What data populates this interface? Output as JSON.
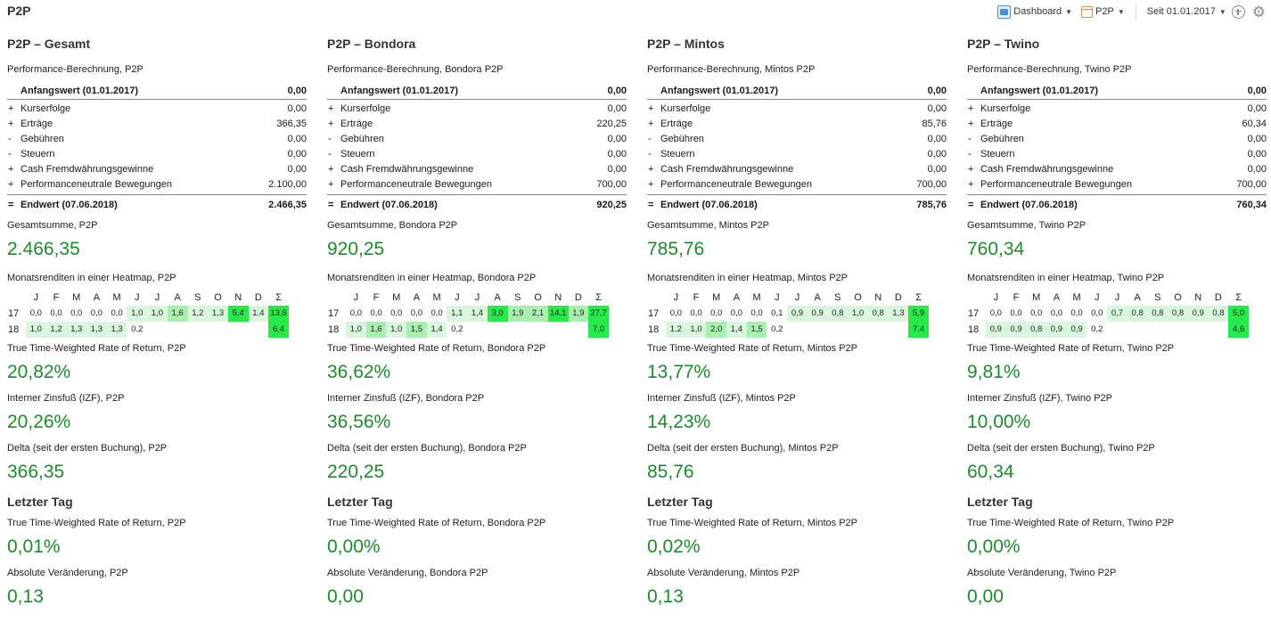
{
  "app_title": "P2P",
  "toolbar": {
    "dashboard_label": "Dashboard",
    "portfolio_label": "P2P",
    "since_label": "Seit 01.01.2017",
    "icons": [
      "dashboard-icon",
      "portfolio-icon",
      "plus-icon",
      "gear-icon"
    ]
  },
  "months": [
    "J",
    "F",
    "M",
    "A",
    "M",
    "J",
    "J",
    "A",
    "S",
    "O",
    "N",
    "D",
    "Σ"
  ],
  "columns": [
    {
      "title": "P2P – Gesamt",
      "perf_label": "Performance-Berechnung, P2P",
      "start_label": "Anfangswert (01.01.2017)",
      "start_value": "0,00",
      "items": [
        {
          "sign": "+",
          "name": "Kurserfolge",
          "value": "0,00"
        },
        {
          "sign": "+",
          "name": "Erträge",
          "value": "366,35"
        },
        {
          "sign": "-",
          "name": "Gebühren",
          "value": "0,00"
        },
        {
          "sign": "-",
          "name": "Steuern",
          "value": "0,00"
        },
        {
          "sign": "+",
          "name": "Cash Fremdwährungsgewinne",
          "value": "0,00"
        },
        {
          "sign": "+",
          "name": "Performanceneutrale Bewegungen",
          "value": "2.100,00"
        }
      ],
      "end_sign": "=",
      "end_label": "Endwert (07.06.2018)",
      "end_value": "2.466,35",
      "total_label": "Gesamtsumme, P2P",
      "total_value": "2.466,35",
      "heat_label": "Monatsrenditen in einer Heatmap, P2P",
      "heat": [
        {
          "year": "17",
          "values": [
            "0,0",
            "0,0",
            "0,0",
            "0,0",
            "0,0",
            "1,0",
            "1,0",
            "1,6",
            "1,2",
            "1,3",
            "5,4",
            "1,4",
            "13,6"
          ]
        },
        {
          "year": "18",
          "values": [
            "1,0",
            "1,2",
            "1,3",
            "1,3",
            "1,3",
            "0,2",
            "",
            "",
            "",
            "",
            "",
            "",
            "6,4"
          ]
        }
      ],
      "ttwror_label": "True Time-Weighted Rate of Return, P2P",
      "ttwror_value": "20,82%",
      "izf_label": "Interner Zinsfuß (IZF), P2P",
      "izf_value": "20,26%",
      "delta_label": "Delta (seit der ersten Buchung), P2P",
      "delta_value": "366,35",
      "last_day_title": "Letzter Tag",
      "ld_ttwror_label": "True Time-Weighted Rate of Return, P2P",
      "ld_ttwror_value": "0,01%",
      "ld_abs_label": "Absolute Veränderung, P2P",
      "ld_abs_value": "0,13"
    },
    {
      "title": "P2P – Bondora",
      "perf_label": "Performance-Berechnung, Bondora P2P",
      "start_label": "Anfangswert (01.01.2017)",
      "start_value": "0,00",
      "items": [
        {
          "sign": "+",
          "name": "Kurserfolge",
          "value": "0,00"
        },
        {
          "sign": "+",
          "name": "Erträge",
          "value": "220,25"
        },
        {
          "sign": "-",
          "name": "Gebühren",
          "value": "0,00"
        },
        {
          "sign": "-",
          "name": "Steuern",
          "value": "0,00"
        },
        {
          "sign": "+",
          "name": "Cash Fremdwährungsgewinne",
          "value": "0,00"
        },
        {
          "sign": "+",
          "name": "Performanceneutrale Bewegungen",
          "value": "700,00"
        }
      ],
      "end_sign": "=",
      "end_label": "Endwert (07.06.2018)",
      "end_value": "920,25",
      "total_label": "Gesamtsumme, Bondora P2P",
      "total_value": "920,25",
      "heat_label": "Monatsrenditen in einer Heatmap, Bondora P2P",
      "heat": [
        {
          "year": "17",
          "values": [
            "0,0",
            "0,0",
            "0,0",
            "0,0",
            "0,0",
            "1,1",
            "1,4",
            "3,0",
            "1,9",
            "2,1",
            "14,1",
            "1,9",
            "27,7"
          ]
        },
        {
          "year": "18",
          "values": [
            "1,0",
            "1,6",
            "1,0",
            "1,5",
            "1,4",
            "0,2",
            "",
            "",
            "",
            "",
            "",
            "",
            "7,0"
          ]
        }
      ],
      "ttwror_label": "True Time-Weighted Rate of Return, Bondora P2P",
      "ttwror_value": "36,62%",
      "izf_label": "Interner Zinsfuß (IZF), Bondora P2P",
      "izf_value": "36,56%",
      "delta_label": "Delta (seit der ersten Buchung), Bondora P2P",
      "delta_value": "220,25",
      "last_day_title": "Letzter Tag",
      "ld_ttwror_label": "True Time-Weighted Rate of Return, Bondora P2P",
      "ld_ttwror_value": "0,00%",
      "ld_abs_label": "Absolute Veränderung, Bondora P2P",
      "ld_abs_value": "0,00"
    },
    {
      "title": "P2P – Mintos",
      "perf_label": "Performance-Berechnung, Mintos P2P",
      "start_label": "Anfangswert (01.01.2017)",
      "start_value": "0,00",
      "items": [
        {
          "sign": "+",
          "name": "Kurserfolge",
          "value": "0,00"
        },
        {
          "sign": "+",
          "name": "Erträge",
          "value": "85,76"
        },
        {
          "sign": "-",
          "name": "Gebühren",
          "value": "0,00"
        },
        {
          "sign": "-",
          "name": "Steuern",
          "value": "0,00"
        },
        {
          "sign": "+",
          "name": "Cash Fremdwährungsgewinne",
          "value": "0,00"
        },
        {
          "sign": "+",
          "name": "Performanceneutrale Bewegungen",
          "value": "700,00"
        }
      ],
      "end_sign": "=",
      "end_label": "Endwert (07.06.2018)",
      "end_value": "785,76",
      "total_label": "Gesamtsumme, Mintos P2P",
      "total_value": "785,76",
      "heat_label": "Monatsrenditen in einer Heatmap, Mintos P2P",
      "heat": [
        {
          "year": "17",
          "values": [
            "0,0",
            "0,0",
            "0,0",
            "0,0",
            "0,0",
            "0,1",
            "0,9",
            "0,9",
            "0,8",
            "1,0",
            "0,8",
            "1,3",
            "5,9"
          ]
        },
        {
          "year": "18",
          "values": [
            "1,2",
            "1,0",
            "2,0",
            "1,4",
            "1,5",
            "0,2",
            "",
            "",
            "",
            "",
            "",
            "",
            "7,4"
          ]
        }
      ],
      "ttwror_label": "True Time-Weighted Rate of Return, Mintos P2P",
      "ttwror_value": "13,77%",
      "izf_label": "Interner Zinsfuß (IZF), Mintos P2P",
      "izf_value": "14,23%",
      "delta_label": "Delta (seit der ersten Buchung), Mintos P2P",
      "delta_value": "85,76",
      "last_day_title": "Letzter Tag",
      "ld_ttwror_label": "True Time-Weighted Rate of Return, Mintos P2P",
      "ld_ttwror_value": "0,02%",
      "ld_abs_label": "Absolute Veränderung, Mintos P2P",
      "ld_abs_value": "0,13"
    },
    {
      "title": "P2P – Twino",
      "perf_label": "Performance-Berechnung, Twino P2P",
      "start_label": "Anfangswert (01.01.2017)",
      "start_value": "0,00",
      "items": [
        {
          "sign": "+",
          "name": "Kurserfolge",
          "value": "0,00"
        },
        {
          "sign": "+",
          "name": "Erträge",
          "value": "60,34"
        },
        {
          "sign": "-",
          "name": "Gebühren",
          "value": "0,00"
        },
        {
          "sign": "-",
          "name": "Steuern",
          "value": "0,00"
        },
        {
          "sign": "+",
          "name": "Cash Fremdwährungsgewinne",
          "value": "0,00"
        },
        {
          "sign": "+",
          "name": "Performanceneutrale Bewegungen",
          "value": "700,00"
        }
      ],
      "end_sign": "=",
      "end_label": "Endwert (07.06.2018)",
      "end_value": "760,34",
      "total_label": "Gesamtsumme, Twino P2P",
      "total_value": "760,34",
      "heat_label": "Monatsrenditen in einer Heatmap, Twino P2P",
      "heat": [
        {
          "year": "17",
          "values": [
            "0,0",
            "0,0",
            "0,0",
            "0,0",
            "0,0",
            "0,0",
            "0,7",
            "0,8",
            "0,8",
            "0,8",
            "0,9",
            "0,8",
            "5,0"
          ]
        },
        {
          "year": "18",
          "values": [
            "0,9",
            "0,9",
            "0,8",
            "0,9",
            "0,9",
            "0,2",
            "",
            "",
            "",
            "",
            "",
            "",
            "4,6"
          ]
        }
      ],
      "ttwror_label": "True Time-Weighted Rate of Return, Twino P2P",
      "ttwror_value": "9,81%",
      "izf_label": "Interner Zinsfuß (IZF), Twino P2P",
      "izf_value": "10,00%",
      "delta_label": "Delta (seit der ersten Buchung), Twino P2P",
      "delta_value": "60,34",
      "last_day_title": "Letzter Tag",
      "ld_ttwror_label": "True Time-Weighted Rate of Return, Twino P2P",
      "ld_ttwror_value": "0,00%",
      "ld_abs_label": "Absolute Veränderung, Twino P2P",
      "ld_abs_value": "0,00"
    }
  ],
  "colors": {
    "accent_green": "#1e8a2e",
    "heat_low": "#d9f7dc",
    "heat_mid": "#a8efb0",
    "heat_high": "#27e94a"
  }
}
